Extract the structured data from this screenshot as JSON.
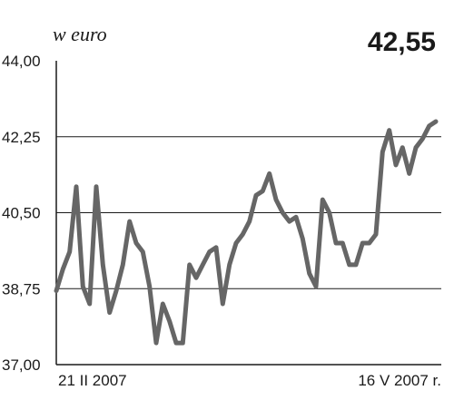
{
  "chart_data": {
    "type": "line",
    "unit_label": "w euro",
    "current_value": "42,55",
    "ylim": [
      37.0,
      44.0
    ],
    "y_ticks": [
      {
        "value": 44.0,
        "label": "44,00"
      },
      {
        "value": 42.25,
        "label": "42,25"
      },
      {
        "value": 40.5,
        "label": "40,50"
      },
      {
        "value": 38.75,
        "label": "38,75"
      },
      {
        "value": 37.0,
        "label": "37,00"
      }
    ],
    "x_start_label": "21 II 2007",
    "x_end_label": "16 V 2007 r.",
    "grid": "horizontal",
    "colors": {
      "line": "#666666",
      "axis": "#1a1a1a",
      "grid": "#1a1a1a",
      "text": "#1a1a1a"
    },
    "series": [
      {
        "values": [
          38.7,
          39.2,
          39.6,
          41.1,
          38.8,
          38.4,
          41.1,
          39.3,
          38.2,
          38.7,
          39.3,
          40.3,
          39.8,
          39.6,
          38.8,
          37.5,
          38.4,
          38.0,
          37.5,
          37.5,
          39.3,
          39.0,
          39.3,
          39.6,
          39.7,
          38.4,
          39.3,
          39.8,
          40.0,
          40.3,
          40.9,
          41.0,
          41.4,
          40.8,
          40.5,
          40.3,
          40.4,
          39.9,
          39.1,
          38.8,
          40.8,
          40.5,
          39.8,
          39.8,
          39.3,
          39.3,
          39.8,
          39.8,
          40.0,
          41.9,
          42.4,
          41.6,
          42.0,
          41.4,
          42.0,
          42.2,
          42.5,
          42.6
        ]
      }
    ]
  }
}
